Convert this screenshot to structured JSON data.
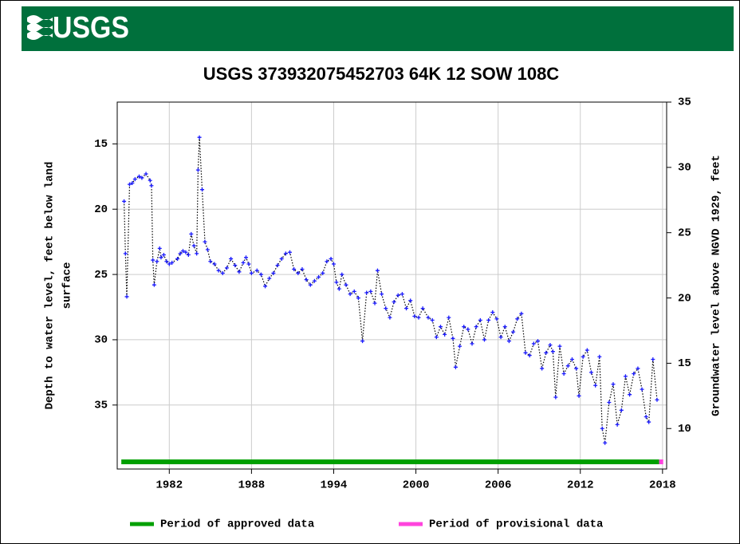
{
  "header": {
    "logo": "USGS"
  },
  "chart_data": {
    "type": "scatter",
    "title": "USGS 373932075452703 64K 12 SOW 108C",
    "ylabel": [
      "Depth to water level, feet below land",
      "surface"
    ],
    "y2label": "Groundwater level above NGVD 1929, feet",
    "marker_color": "#1a1aff",
    "line_color": "#000000",
    "grid": true,
    "xlim": [
      1978.2,
      2018.3
    ],
    "xticks": [
      1982,
      1988,
      1994,
      2000,
      2006,
      2012,
      2018
    ],
    "ylim": [
      39.9,
      11.8
    ],
    "yticks": [
      15,
      20,
      25,
      30,
      35
    ],
    "y2lim": [
      6.9,
      35
    ],
    "y2ticks": [
      10,
      15,
      20,
      25,
      30,
      35
    ],
    "x": [
      1978.7,
      1978.8,
      1978.9,
      1979.1,
      1979.3,
      1979.5,
      1979.8,
      1980.0,
      1980.3,
      1980.6,
      1980.7,
      1980.8,
      1980.9,
      1981.1,
      1981.3,
      1981.4,
      1981.6,
      1981.8,
      1982.0,
      1982.2,
      1982.6,
      1982.8,
      1983.0,
      1983.2,
      1983.4,
      1983.6,
      1983.8,
      1984.0,
      1984.1,
      1984.2,
      1984.4,
      1984.6,
      1984.8,
      1985.0,
      1985.3,
      1985.6,
      1985.9,
      1986.2,
      1986.5,
      1986.8,
      1987.1,
      1987.4,
      1987.6,
      1987.8,
      1988.0,
      1988.4,
      1988.7,
      1989.0,
      1989.3,
      1989.6,
      1989.9,
      1990.2,
      1990.5,
      1990.8,
      1991.1,
      1991.4,
      1991.7,
      1992.0,
      1992.3,
      1992.6,
      1992.9,
      1993.2,
      1993.5,
      1993.8,
      1994.0,
      1994.2,
      1994.4,
      1994.6,
      1994.9,
      1995.2,
      1995.5,
      1995.8,
      1996.1,
      1996.4,
      1996.7,
      1997.0,
      1997.2,
      1997.5,
      1997.8,
      1998.1,
      1998.4,
      1998.7,
      1999.0,
      1999.3,
      1999.6,
      1999.9,
      2000.2,
      2000.5,
      2000.9,
      2001.2,
      2001.5,
      2001.8,
      2002.1,
      2002.4,
      2002.7,
      2002.9,
      2003.2,
      2003.5,
      2003.8,
      2004.1,
      2004.4,
      2004.7,
      2005.0,
      2005.3,
      2005.6,
      2005.9,
      2006.2,
      2006.5,
      2006.8,
      2007.1,
      2007.4,
      2007.7,
      2008.0,
      2008.3,
      2008.6,
      2008.9,
      2009.2,
      2009.5,
      2009.8,
      2010.0,
      2010.2,
      2010.5,
      2010.8,
      2011.1,
      2011.4,
      2011.7,
      2011.9,
      2012.2,
      2012.5,
      2012.8,
      2013.1,
      2013.4,
      2013.6,
      2013.8,
      2014.1,
      2014.4,
      2014.7,
      2015.0,
      2015.3,
      2015.6,
      2015.9,
      2016.2,
      2016.5,
      2016.8,
      2017.0,
      2017.3,
      2017.6
    ],
    "values": [
      19.4,
      23.4,
      26.7,
      18.1,
      18.0,
      17.7,
      17.5,
      17.6,
      17.3,
      17.8,
      18.2,
      23.9,
      25.8,
      24.0,
      23.0,
      23.7,
      23.5,
      24.0,
      24.2,
      24.1,
      23.8,
      23.4,
      23.2,
      23.3,
      23.5,
      21.9,
      22.8,
      23.4,
      17.0,
      14.5,
      18.5,
      22.5,
      23.1,
      24.0,
      24.2,
      24.7,
      24.9,
      24.5,
      23.8,
      24.3,
      24.8,
      24.1,
      23.7,
      24.2,
      24.9,
      24.7,
      25.0,
      25.9,
      25.3,
      24.9,
      24.3,
      23.8,
      23.4,
      23.3,
      24.6,
      24.9,
      24.6,
      25.4,
      25.8,
      25.5,
      25.2,
      24.9,
      24.0,
      23.8,
      24.2,
      25.6,
      26.1,
      25.0,
      25.8,
      26.5,
      26.3,
      26.8,
      30.1,
      26.4,
      26.3,
      27.2,
      24.7,
      26.5,
      27.6,
      28.3,
      27.1,
      26.6,
      26.5,
      27.6,
      27.0,
      28.2,
      28.3,
      27.6,
      28.3,
      28.5,
      29.8,
      29.0,
      29.6,
      28.3,
      29.9,
      32.1,
      30.5,
      29.0,
      29.2,
      30.3,
      29.0,
      28.5,
      30.0,
      28.5,
      27.9,
      28.4,
      29.8,
      29.0,
      30.1,
      29.4,
      28.4,
      28.0,
      31.0,
      31.2,
      30.3,
      30.1,
      32.2,
      31.0,
      30.4,
      30.9,
      34.4,
      30.5,
      32.6,
      32.0,
      31.5,
      32.2,
      34.3,
      31.3,
      30.8,
      32.5,
      33.5,
      31.3,
      36.8,
      37.9,
      34.8,
      33.4,
      36.5,
      35.4,
      32.8,
      34.2,
      32.6,
      32.2,
      33.8,
      35.9,
      36.3,
      31.5,
      34.6
    ],
    "periods": [
      {
        "name": "Period of approved data",
        "color": "#00a000",
        "start": 1978.5,
        "end": 2017.75
      },
      {
        "name": "Period of provisional data",
        "color": "#ff44dd",
        "start": 2017.75,
        "end": 2018.05
      }
    ]
  }
}
